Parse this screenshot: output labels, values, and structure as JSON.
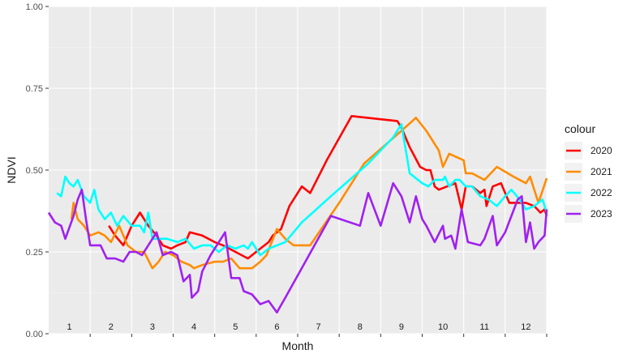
{
  "chart_data": {
    "type": "line",
    "title": "",
    "xlabel": "Month",
    "ylabel": "NDVI",
    "xlim": [
      0.5,
      12.5
    ],
    "ylim": [
      0.0,
      1.0
    ],
    "yticks": [
      0.0,
      0.25,
      0.5,
      0.75,
      1.0
    ],
    "ytick_labels": [
      "0.00",
      "0.25",
      "0.50",
      "0.75",
      "1.00"
    ],
    "month_labels": [
      "1",
      "2",
      "3",
      "4",
      "5",
      "6",
      "7",
      "8",
      "9",
      "10",
      "11",
      "12"
    ],
    "grid": true,
    "legend": {
      "title": "colour",
      "position": "right"
    },
    "series": [
      {
        "name": "2020",
        "color": "#ff0000",
        "points": [
          [
            1.95,
            0.33
          ],
          [
            2.1,
            0.3
          ],
          [
            2.3,
            0.27
          ],
          [
            2.5,
            0.33
          ],
          [
            2.7,
            0.37
          ],
          [
            2.9,
            0.33
          ],
          [
            3.1,
            0.3
          ],
          [
            3.25,
            0.27
          ],
          [
            3.45,
            0.26
          ],
          [
            3.6,
            0.27
          ],
          [
            3.8,
            0.28
          ],
          [
            3.9,
            0.31
          ],
          [
            4.2,
            0.3
          ],
          [
            4.5,
            0.28
          ],
          [
            4.7,
            0.27
          ],
          [
            5.0,
            0.25
          ],
          [
            5.3,
            0.23
          ],
          [
            5.5,
            0.25
          ],
          [
            5.8,
            0.28
          ],
          [
            5.9,
            0.3
          ],
          [
            6.1,
            0.32
          ],
          [
            6.3,
            0.39
          ],
          [
            6.6,
            0.45
          ],
          [
            6.8,
            0.43
          ],
          [
            7.2,
            0.53
          ],
          [
            7.8,
            0.665
          ],
          [
            8.9,
            0.65
          ],
          [
            9.0,
            0.63
          ],
          [
            9.2,
            0.57
          ],
          [
            9.45,
            0.51
          ],
          [
            9.6,
            0.5
          ],
          [
            9.7,
            0.5
          ],
          [
            9.8,
            0.45
          ],
          [
            9.9,
            0.44
          ],
          [
            10.1,
            0.45
          ],
          [
            10.3,
            0.46
          ],
          [
            10.45,
            0.38
          ],
          [
            10.55,
            0.45
          ],
          [
            10.7,
            0.45
          ],
          [
            10.9,
            0.43
          ],
          [
            11.0,
            0.44
          ],
          [
            11.05,
            0.39
          ],
          [
            11.2,
            0.45
          ],
          [
            11.4,
            0.46
          ],
          [
            11.6,
            0.4
          ],
          [
            11.8,
            0.4
          ],
          [
            12.0,
            0.4
          ],
          [
            12.2,
            0.39
          ],
          [
            12.35,
            0.37
          ],
          [
            12.45,
            0.38
          ],
          [
            12.5,
            0.36
          ]
        ]
      },
      {
        "name": "2021",
        "color": "#ff8c00",
        "points": [
          [
            1.05,
            0.35
          ],
          [
            1.1,
            0.4
          ],
          [
            1.2,
            0.35
          ],
          [
            1.35,
            0.33
          ],
          [
            1.5,
            0.3
          ],
          [
            1.7,
            0.31
          ],
          [
            1.85,
            0.3
          ],
          [
            2.0,
            0.28
          ],
          [
            2.2,
            0.33
          ],
          [
            2.4,
            0.27
          ],
          [
            2.6,
            0.25
          ],
          [
            2.8,
            0.25
          ],
          [
            3.0,
            0.2
          ],
          [
            3.15,
            0.22
          ],
          [
            3.3,
            0.25
          ],
          [
            3.5,
            0.24
          ],
          [
            3.7,
            0.22
          ],
          [
            3.9,
            0.21
          ],
          [
            4.0,
            0.2
          ],
          [
            4.2,
            0.21
          ],
          [
            4.5,
            0.22
          ],
          [
            4.7,
            0.22
          ],
          [
            4.9,
            0.23
          ],
          [
            5.1,
            0.2
          ],
          [
            5.4,
            0.2
          ],
          [
            5.6,
            0.22
          ],
          [
            5.75,
            0.24
          ],
          [
            6.0,
            0.32
          ],
          [
            6.2,
            0.29
          ],
          [
            6.4,
            0.27
          ],
          [
            6.8,
            0.27
          ],
          [
            7.5,
            0.4
          ],
          [
            8.1,
            0.52
          ],
          [
            9.0,
            0.62
          ],
          [
            9.35,
            0.66
          ],
          [
            9.6,
            0.62
          ],
          [
            9.9,
            0.56
          ],
          [
            10.0,
            0.51
          ],
          [
            10.15,
            0.55
          ],
          [
            10.5,
            0.53
          ],
          [
            10.55,
            0.49
          ],
          [
            10.7,
            0.49
          ],
          [
            11.0,
            0.47
          ],
          [
            11.3,
            0.51
          ],
          [
            11.7,
            0.48
          ],
          [
            12.0,
            0.46
          ],
          [
            12.1,
            0.48
          ],
          [
            12.3,
            0.4
          ],
          [
            12.5,
            0.475
          ]
        ]
      },
      {
        "name": "2022",
        "color": "#00ffff",
        "points": [
          [
            0.7,
            0.43
          ],
          [
            0.8,
            0.42
          ],
          [
            0.9,
            0.48
          ],
          [
            1.0,
            0.46
          ],
          [
            1.1,
            0.45
          ],
          [
            1.2,
            0.47
          ],
          [
            1.35,
            0.42
          ],
          [
            1.5,
            0.4
          ],
          [
            1.6,
            0.44
          ],
          [
            1.7,
            0.38
          ],
          [
            1.85,
            0.35
          ],
          [
            2.0,
            0.37
          ],
          [
            2.15,
            0.33
          ],
          [
            2.3,
            0.36
          ],
          [
            2.5,
            0.33
          ],
          [
            2.7,
            0.33
          ],
          [
            2.8,
            0.31
          ],
          [
            2.9,
            0.37
          ],
          [
            3.0,
            0.29
          ],
          [
            3.2,
            0.29
          ],
          [
            3.35,
            0.29
          ],
          [
            3.6,
            0.28
          ],
          [
            3.8,
            0.29
          ],
          [
            4.0,
            0.26
          ],
          [
            4.2,
            0.27
          ],
          [
            4.4,
            0.27
          ],
          [
            4.6,
            0.25
          ],
          [
            4.8,
            0.27
          ],
          [
            5.0,
            0.26
          ],
          [
            5.2,
            0.27
          ],
          [
            5.3,
            0.26
          ],
          [
            5.4,
            0.28
          ],
          [
            5.6,
            0.24
          ],
          [
            5.8,
            0.26
          ],
          [
            6.2,
            0.28
          ],
          [
            6.6,
            0.34
          ],
          [
            7.3,
            0.42
          ],
          [
            8.2,
            0.52
          ],
          [
            8.8,
            0.6
          ],
          [
            9.0,
            0.64
          ],
          [
            9.2,
            0.49
          ],
          [
            9.5,
            0.46
          ],
          [
            9.65,
            0.45
          ],
          [
            9.8,
            0.47
          ],
          [
            10.0,
            0.47
          ],
          [
            10.05,
            0.48
          ],
          [
            10.15,
            0.45
          ],
          [
            10.3,
            0.47
          ],
          [
            10.4,
            0.47
          ],
          [
            10.55,
            0.45
          ],
          [
            10.7,
            0.45
          ],
          [
            10.9,
            0.42
          ],
          [
            11.1,
            0.41
          ],
          [
            11.3,
            0.39
          ],
          [
            11.5,
            0.42
          ],
          [
            11.65,
            0.44
          ],
          [
            11.85,
            0.41
          ],
          [
            12.0,
            0.38
          ],
          [
            12.2,
            0.39
          ],
          [
            12.4,
            0.41
          ],
          [
            12.5,
            0.37
          ]
        ]
      },
      {
        "name": "2023",
        "color": "#a020f0",
        "points": [
          [
            0.5,
            0.37
          ],
          [
            0.65,
            0.34
          ],
          [
            0.8,
            0.33
          ],
          [
            0.9,
            0.29
          ],
          [
            1.1,
            0.36
          ],
          [
            1.2,
            0.41
          ],
          [
            1.3,
            0.44
          ],
          [
            1.4,
            0.35
          ],
          [
            1.5,
            0.27
          ],
          [
            1.75,
            0.27
          ],
          [
            1.9,
            0.23
          ],
          [
            2.1,
            0.23
          ],
          [
            2.3,
            0.22
          ],
          [
            2.45,
            0.25
          ],
          [
            2.6,
            0.25
          ],
          [
            2.75,
            0.24
          ],
          [
            2.9,
            0.27
          ],
          [
            3.1,
            0.31
          ],
          [
            3.25,
            0.24
          ],
          [
            3.45,
            0.25
          ],
          [
            3.6,
            0.24
          ],
          [
            3.75,
            0.16
          ],
          [
            3.9,
            0.18
          ],
          [
            3.95,
            0.11
          ],
          [
            4.1,
            0.13
          ],
          [
            4.2,
            0.19
          ],
          [
            4.4,
            0.24
          ],
          [
            4.6,
            0.28
          ],
          [
            4.75,
            0.31
          ],
          [
            4.9,
            0.17
          ],
          [
            5.1,
            0.17
          ],
          [
            5.2,
            0.13
          ],
          [
            5.4,
            0.12
          ],
          [
            5.6,
            0.09
          ],
          [
            5.8,
            0.1
          ],
          [
            6.0,
            0.065
          ],
          [
            6.2,
            0.11
          ],
          [
            7.3,
            0.36
          ],
          [
            8.0,
            0.33
          ],
          [
            8.2,
            0.43
          ],
          [
            8.5,
            0.33
          ],
          [
            8.8,
            0.46
          ],
          [
            9.0,
            0.42
          ],
          [
            9.2,
            0.34
          ],
          [
            9.35,
            0.42
          ],
          [
            9.5,
            0.35
          ],
          [
            9.6,
            0.33
          ],
          [
            9.8,
            0.28
          ],
          [
            10.0,
            0.33
          ],
          [
            10.05,
            0.29
          ],
          [
            10.2,
            0.3
          ],
          [
            10.3,
            0.26
          ],
          [
            10.45,
            0.38
          ],
          [
            10.6,
            0.28
          ],
          [
            10.9,
            0.27
          ],
          [
            11.0,
            0.29
          ],
          [
            11.2,
            0.36
          ],
          [
            11.3,
            0.27
          ],
          [
            11.5,
            0.31
          ],
          [
            11.65,
            0.36
          ],
          [
            11.8,
            0.41
          ],
          [
            11.9,
            0.42
          ],
          [
            12.0,
            0.28
          ],
          [
            12.1,
            0.34
          ],
          [
            12.2,
            0.26
          ],
          [
            12.3,
            0.28
          ],
          [
            12.45,
            0.3
          ],
          [
            12.5,
            0.38
          ]
        ]
      }
    ]
  }
}
